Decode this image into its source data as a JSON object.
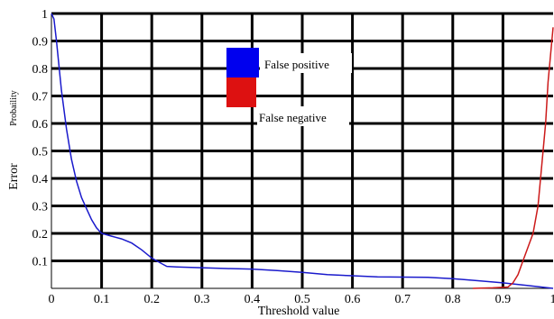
{
  "chart_data": {
    "type": "line",
    "xlabel": "Threshold value",
    "ylabel": "Error",
    "ylabel_secondary": "Probaility",
    "xlim": [
      0,
      1
    ],
    "ylim": [
      0,
      1
    ],
    "x_ticks": [
      "0",
      "0.1",
      "0.2",
      "0.3",
      "0.4",
      "0.5",
      "0.6",
      "0.7",
      "0.8",
      "0.9",
      "1"
    ],
    "y_ticks": [
      "0.1",
      "0.2",
      "0.3",
      "0.4",
      "0.5",
      "0.6",
      "0.7",
      "0.8",
      "0.9",
      "1"
    ],
    "grid": true,
    "legend_position": "top-center",
    "series": [
      {
        "name": "False positive",
        "color": "#1a1acc",
        "x": [
          0,
          0.005,
          0.01,
          0.02,
          0.03,
          0.04,
          0.05,
          0.06,
          0.07,
          0.08,
          0.09,
          0.1,
          0.12,
          0.14,
          0.16,
          0.18,
          0.2,
          0.22,
          0.23,
          0.25,
          0.3,
          0.35,
          0.4,
          0.45,
          0.5,
          0.55,
          0.6,
          0.65,
          0.7,
          0.75,
          0.8,
          0.85,
          0.9,
          0.95,
          1
        ],
        "y": [
          1.0,
          0.98,
          0.9,
          0.72,
          0.58,
          0.47,
          0.39,
          0.33,
          0.29,
          0.25,
          0.22,
          0.2,
          0.19,
          0.18,
          0.165,
          0.14,
          0.11,
          0.09,
          0.08,
          0.078,
          0.075,
          0.072,
          0.07,
          0.065,
          0.058,
          0.05,
          0.046,
          0.042,
          0.041,
          0.04,
          0.035,
          0.028,
          0.02,
          0.01,
          0
        ]
      },
      {
        "name": "False negative",
        "color": "#cc1a1a",
        "x": [
          0.84,
          0.88,
          0.91,
          0.92,
          0.93,
          0.94,
          0.95,
          0.96,
          0.97,
          0.975,
          0.98,
          0.985,
          0.99,
          0.995,
          1.0
        ],
        "y": [
          0,
          0.002,
          0.005,
          0.02,
          0.05,
          0.1,
          0.15,
          0.2,
          0.3,
          0.4,
          0.5,
          0.6,
          0.75,
          0.85,
          0.95
        ]
      }
    ]
  }
}
